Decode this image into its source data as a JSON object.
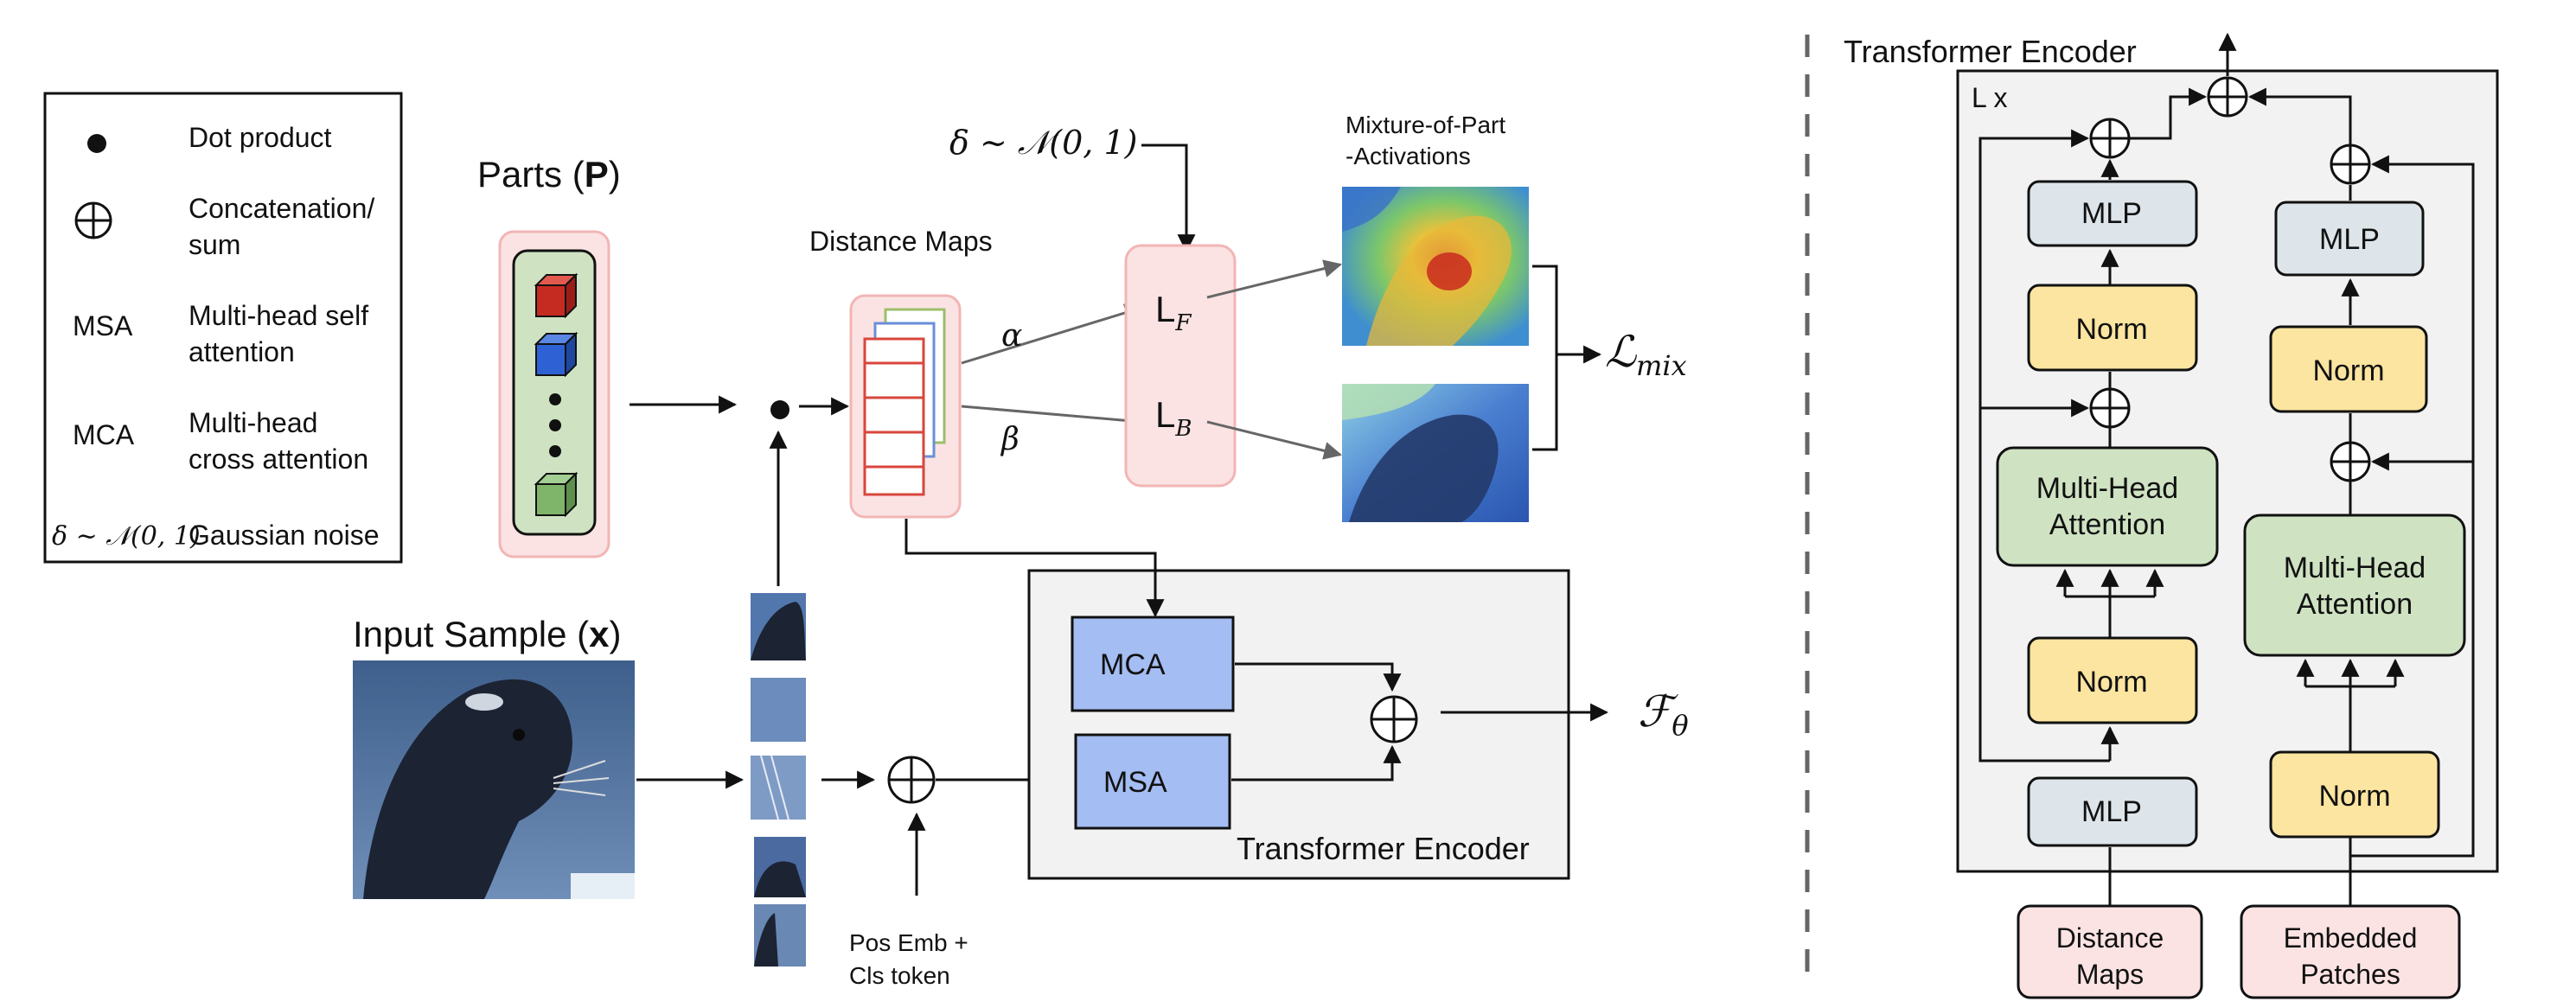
{
  "legend": {
    "items": [
      {
        "symbol": "dot-icon",
        "text_lines": [
          "Dot product"
        ]
      },
      {
        "symbol": "oplus-icon",
        "text_lines": [
          "Concatenation/",
          "sum"
        ]
      },
      {
        "symbol_text": "MSA",
        "text_lines": [
          "Multi-head self",
          "attention"
        ]
      },
      {
        "symbol_text": "MCA",
        "text_lines": [
          "Multi-head",
          "cross attention"
        ]
      },
      {
        "symbol_text": "δ ∼ 𝒩(0, 1)",
        "text_lines": [
          "Gaussian noise"
        ]
      }
    ]
  },
  "left_diagram": {
    "parts_title_prefix": "Parts (",
    "parts_title_symbol": "P",
    "parts_title_suffix": ")",
    "input_title_prefix": "Input Sample (",
    "input_title_symbol": "x",
    "input_title_suffix": ")",
    "distance_maps_label": "Distance Maps",
    "noise_label": "δ ∼ 𝒩(0, 1)",
    "alpha": "α",
    "beta": "β",
    "loss_fg_main": "L",
    "loss_fg_sub": "F",
    "loss_bg_main": "L",
    "loss_bg_sub": "B",
    "mixture_label_lines": [
      "Mixture-of-Part",
      "-Activations"
    ],
    "loss_mix_main": "ℒ",
    "loss_mix_sub": "mix",
    "pos_emb_lines": [
      "Pos Emb +",
      "Cls token"
    ],
    "mca_label": "MCA",
    "msa_label": "MSA",
    "encoder_label": "Transformer Encoder",
    "output_main": "ℱ",
    "output_sub": "θ"
  },
  "right_diagram": {
    "title": "Transformer Encoder",
    "repeat_label": "L x",
    "left_branch": {
      "mlp_top": "MLP",
      "norm_upper": "Norm",
      "attention_lines": [
        "Multi-Head",
        "Attention"
      ],
      "norm_lower": "Norm",
      "mlp_bottom": "MLP"
    },
    "right_branch": {
      "mlp_top": "MLP",
      "norm_upper": "Norm",
      "attention_lines": [
        "Multi-Head",
        "Attention"
      ],
      "norm_lower": "Norm"
    },
    "input_left_lines": [
      "Distance",
      "Maps"
    ],
    "input_right_lines": [
      "Embedded",
      "Patches"
    ]
  },
  "colors": {
    "pink_fill": "#fbe3e3",
    "pink_stroke": "#f2b5b5",
    "green_fill": "#cfe3c3",
    "blue_fill": "#a4bdf2",
    "yellow_fill": "#fbe5a0",
    "gray_box_fill": "#dde5ea",
    "encoder_bg": "#f2f2f2"
  }
}
